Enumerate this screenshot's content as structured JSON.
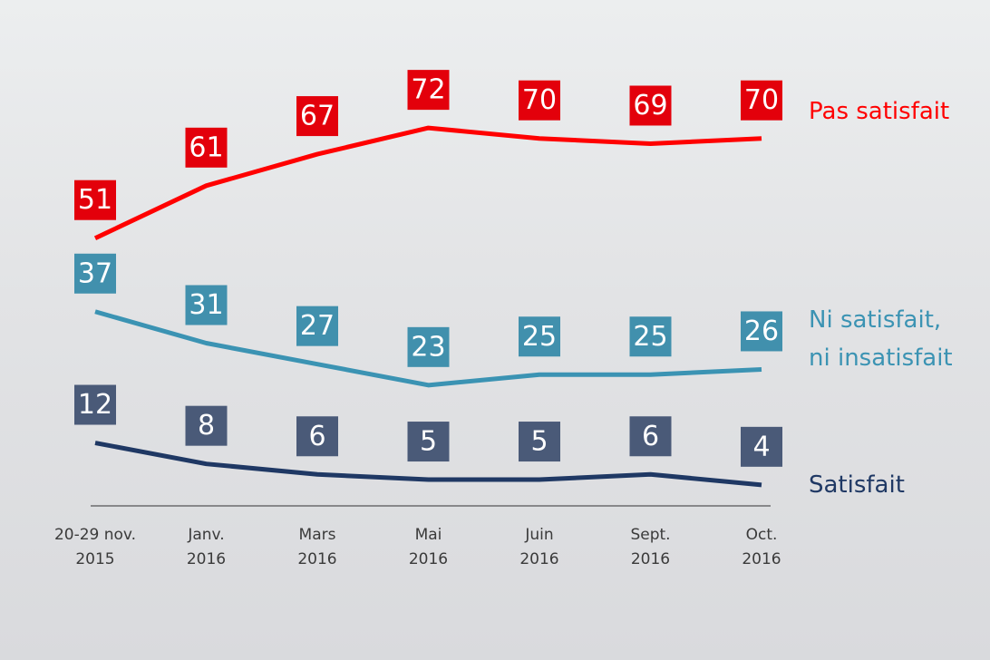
{
  "chart_data": {
    "type": "line",
    "categories": [
      "20-29 nov.\n2015",
      "Janv.\n2016",
      "Mars\n2016",
      "Mai\n2016",
      "Juin\n2016",
      "Sept.\n2016",
      "Oct.\n2016"
    ],
    "series": [
      {
        "name": "Pas satisfait",
        "color": "#ff0000",
        "label_color": "#e3000b",
        "values": [
          51,
          61,
          67,
          72,
          70,
          69,
          70
        ]
      },
      {
        "name": "Ni satisfait,\nni insatisfait",
        "color": "#3b93b3",
        "label_color": "#4190ad",
        "values": [
          37,
          31,
          27,
          23,
          25,
          25,
          26
        ]
      },
      {
        "name": "Satisfait",
        "color": "#1f3864",
        "label_color": "#4a5a78",
        "values": [
          12,
          8,
          6,
          5,
          5,
          6,
          4
        ]
      }
    ]
  }
}
